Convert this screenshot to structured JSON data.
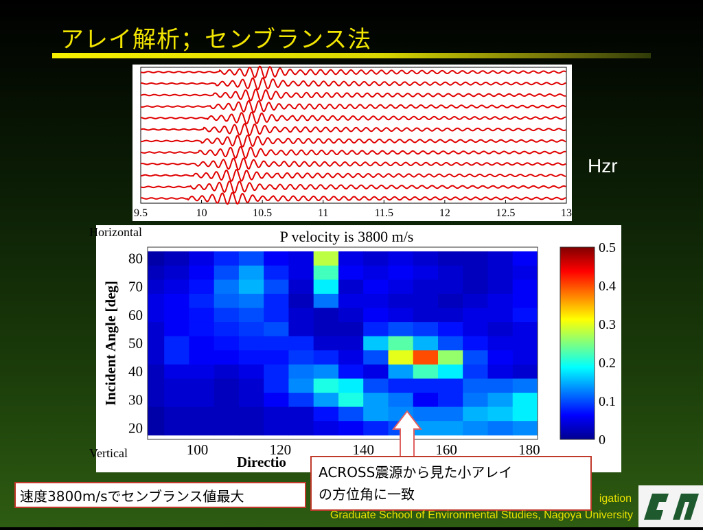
{
  "slide": {
    "title": "アレイ解析；センブランス法",
    "side_label": "Hzr",
    "label_horizontal": "Horizontal",
    "label_vertical": "Vertical",
    "callout_left": "速度3800m/sでセンブランス値最大",
    "callout_right_line1": "ACROSS震源から見た小アレイ",
    "callout_right_line2": "の方位角に一致",
    "footer_line1": "igation",
    "footer_line2": "Graduate School of Environmental Studies, Nagoya University",
    "colors": {
      "title": "#f2e500",
      "waveform": "#e00000",
      "callout_border": "#c0392b",
      "arrow_fill": "#ffffff",
      "arrow_stroke": "#e06060"
    }
  },
  "chart_data": [
    {
      "type": "line",
      "panel": "waveforms",
      "x_ticks": [
        "9.5",
        "10",
        "10.5",
        "11",
        "11.5",
        "12",
        "12.5",
        "13"
      ],
      "xlim": [
        9.5,
        13
      ],
      "trace_count": 12,
      "trace_onsets": [
        10.5,
        10.47,
        10.45,
        10.42,
        10.4,
        10.37,
        10.35,
        10.33,
        10.3,
        10.28,
        10.26,
        10.24
      ]
    },
    {
      "type": "heatmap",
      "panel": "semblance",
      "title": "P velocity is 3800 m/s",
      "xlabel": "Directio",
      "ylabel": "Incident Angle [deg]",
      "x_ticks": [
        "100",
        "120",
        "140",
        "160",
        "180"
      ],
      "y_ticks": [
        "80",
        "70",
        "60",
        "50",
        "40",
        "30",
        "20"
      ],
      "xlim": [
        88,
        182
      ],
      "ylim": [
        16,
        84
      ],
      "x_centers": [
        89,
        95,
        101,
        107,
        113,
        119,
        125,
        131,
        137,
        143,
        149,
        155,
        161,
        167,
        173,
        179
      ],
      "y_centers": [
        80,
        75,
        70,
        65,
        60,
        55,
        50,
        45,
        40,
        35,
        30,
        25,
        20
      ],
      "values": [
        [
          0.02,
          0.03,
          0.05,
          0.08,
          0.1,
          0.06,
          0.05,
          0.28,
          0.05,
          0.04,
          0.05,
          0.04,
          0.03,
          0.03,
          0.04,
          0.06
        ],
        [
          0.03,
          0.04,
          0.06,
          0.1,
          0.14,
          0.08,
          0.05,
          0.22,
          0.06,
          0.05,
          0.06,
          0.05,
          0.04,
          0.03,
          0.04,
          0.05
        ],
        [
          0.04,
          0.05,
          0.07,
          0.12,
          0.15,
          0.1,
          0.04,
          0.18,
          0.04,
          0.06,
          0.05,
          0.04,
          0.04,
          0.03,
          0.04,
          0.06
        ],
        [
          0.05,
          0.06,
          0.08,
          0.11,
          0.12,
          0.08,
          0.03,
          0.12,
          0.05,
          0.05,
          0.04,
          0.04,
          0.03,
          0.04,
          0.05,
          0.06
        ],
        [
          0.05,
          0.06,
          0.07,
          0.09,
          0.1,
          0.08,
          0.04,
          0.03,
          0.04,
          0.06,
          0.05,
          0.04,
          0.04,
          0.05,
          0.05,
          0.07
        ],
        [
          0.04,
          0.06,
          0.07,
          0.08,
          0.09,
          0.1,
          0.04,
          0.03,
          0.03,
          0.08,
          0.1,
          0.09,
          0.07,
          0.05,
          0.04,
          0.05
        ],
        [
          0.04,
          0.08,
          0.06,
          0.07,
          0.08,
          0.08,
          0.08,
          0.04,
          0.04,
          0.16,
          0.23,
          0.15,
          0.1,
          0.07,
          0.05,
          0.05
        ],
        [
          0.04,
          0.08,
          0.06,
          0.06,
          0.07,
          0.07,
          0.09,
          0.08,
          0.05,
          0.1,
          0.3,
          0.4,
          0.26,
          0.1,
          0.06,
          0.05
        ],
        [
          0.03,
          0.05,
          0.05,
          0.04,
          0.05,
          0.08,
          0.12,
          0.13,
          0.07,
          0.05,
          0.14,
          0.22,
          0.18,
          0.09,
          0.05,
          0.04
        ],
        [
          0.03,
          0.04,
          0.04,
          0.03,
          0.04,
          0.08,
          0.13,
          0.2,
          0.18,
          0.1,
          0.08,
          0.08,
          0.08,
          0.11,
          0.11,
          0.12
        ],
        [
          0.03,
          0.04,
          0.04,
          0.03,
          0.04,
          0.06,
          0.09,
          0.14,
          0.2,
          0.14,
          0.12,
          0.06,
          0.08,
          0.12,
          0.14,
          0.18
        ],
        [
          0.02,
          0.03,
          0.03,
          0.03,
          0.03,
          0.04,
          0.04,
          0.07,
          0.1,
          0.14,
          0.13,
          0.12,
          0.12,
          0.15,
          0.16,
          0.18
        ],
        [
          0.02,
          0.03,
          0.03,
          0.03,
          0.03,
          0.04,
          0.04,
          0.05,
          0.06,
          0.08,
          0.1,
          0.14,
          0.14,
          0.13,
          0.12,
          0.13
        ]
      ],
      "colorbar": {
        "ticks": [
          "0",
          "0.1",
          "0.2",
          "0.3",
          "0.4",
          "0.5"
        ],
        "range": [
          0,
          0.5
        ],
        "colormap": "jet"
      }
    }
  ]
}
